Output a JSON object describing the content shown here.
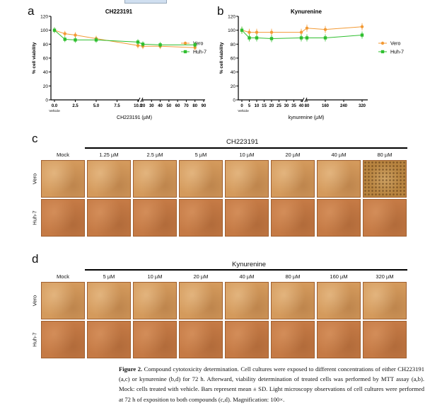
{
  "panels": {
    "a": {
      "label": "a"
    },
    "b": {
      "label": "b"
    },
    "c": {
      "label": "c",
      "compound": "CH223191",
      "mock": "Mock",
      "concentrations": [
        "1.25 µM",
        "2.5 µM",
        "5 µM",
        "10 µM",
        "20 µM",
        "40 µM",
        "80 µM"
      ],
      "rows": [
        "Vero",
        "Huh-7"
      ]
    },
    "d": {
      "label": "d",
      "compound": "Kynurenine",
      "mock": "Mock",
      "concentrations": [
        "5 µM",
        "10 µM",
        "20 µM",
        "40 µM",
        "80 µM",
        "160 µM",
        "320 µM"
      ],
      "rows": [
        "Vero",
        "Huh-7"
      ]
    }
  },
  "chart_data": [
    {
      "type": "line",
      "title": "CH223191",
      "xlabel": "CH223191 (µM)",
      "ylabel": "% cell viability",
      "ylim": [
        0,
        120
      ],
      "yticks": [
        "0",
        "20",
        "40",
        "60",
        "80",
        "100",
        "120"
      ],
      "xticks_left": [
        "0.0",
        "2.5",
        "5.0",
        "7.5",
        "10.0"
      ],
      "xticks_right": [
        "20",
        "30",
        "40",
        "50",
        "60",
        "70",
        "80",
        "90"
      ],
      "x_extra_label": "Vehicle",
      "series": [
        {
          "name": "Vero",
          "color": "#f39a35",
          "marker": "circle",
          "x": [
            0,
            1.25,
            2.5,
            5,
            10,
            20,
            40,
            80
          ],
          "y": [
            100,
            95,
            93,
            88,
            78,
            77,
            77,
            75
          ]
        },
        {
          "name": "Huh-7",
          "color": "#2fbf2f",
          "marker": "square",
          "x": [
            0,
            1.25,
            2.5,
            5,
            10,
            20,
            40,
            80
          ],
          "y": [
            100,
            87,
            86,
            86,
            83,
            80,
            79,
            79
          ]
        }
      ]
    },
    {
      "type": "line",
      "title": "Kynurenine",
      "xlabel": "kynurenine (µM)",
      "ylabel": "% cell viability",
      "ylim": [
        0,
        120
      ],
      "yticks": [
        "0",
        "20",
        "40",
        "60",
        "80",
        "100",
        "120"
      ],
      "xticks_left": [
        "0",
        "5",
        "10",
        "15",
        "20",
        "25",
        "30",
        "35",
        "40"
      ],
      "xticks_right": [
        "80",
        "160",
        "240",
        "320"
      ],
      "x_extra_label": "Vehicle",
      "series": [
        {
          "name": "Vero",
          "color": "#f39a35",
          "marker": "circle",
          "x": [
            0,
            5,
            10,
            20,
            40,
            80,
            160,
            320
          ],
          "y": [
            100,
            97,
            97,
            97,
            97,
            103,
            101,
            105
          ]
        },
        {
          "name": "Huh-7",
          "color": "#2fbf2f",
          "marker": "square",
          "x": [
            0,
            5,
            10,
            20,
            40,
            80,
            160,
            320
          ],
          "y": [
            100,
            89,
            89,
            88,
            89,
            89,
            89,
            93
          ]
        }
      ]
    }
  ],
  "colors": {
    "vero_tile": "#d49a5c",
    "huh_tile": "#c57a45",
    "vero_dense": "#b88440"
  },
  "caption": {
    "bold": "Figure 2.",
    "text": " Compound cytotoxicity determination. Cell cultures were exposed to different concentrations of either CH223191 (a,c) or kynurenine (b,d) for 72 h. Afterward, viability determination of treated cells was performed by MTT assay (a,b). Mock: cells treated with vehicle. Bars represent mean ± SD. Light microscopy observations of cell cultures were performed at 72 h of exposition to both compounds (c,d). Magnification: 100×."
  }
}
